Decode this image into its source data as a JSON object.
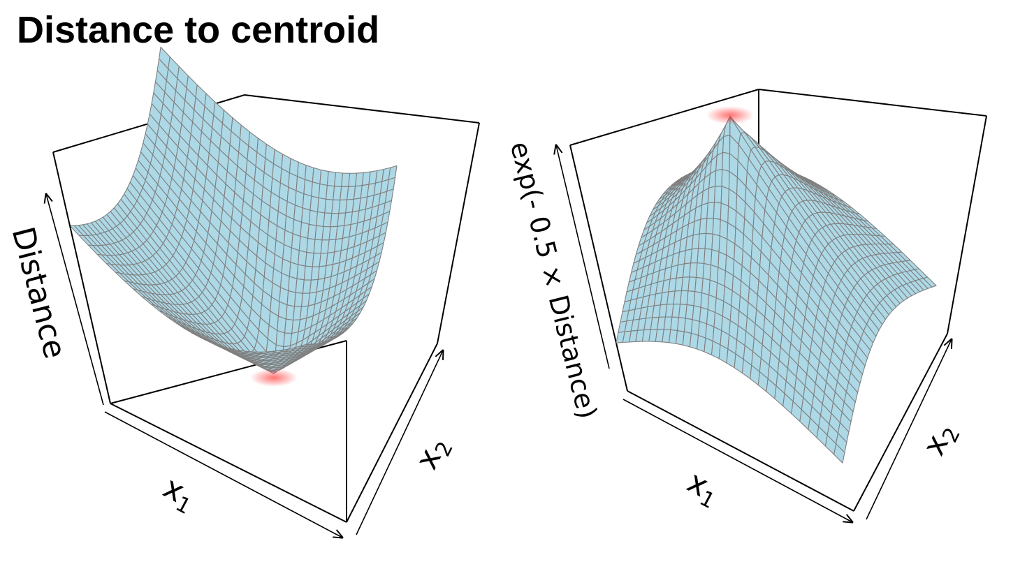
{
  "title": "Distance to centroid",
  "colors": {
    "surface_fill": "#add8e6",
    "mesh_line": "#808080",
    "centroid_marker": "#ff0000",
    "box_line": "#000000"
  },
  "chart_data": [
    {
      "type": "surface",
      "zlabel": "Distance",
      "xlabel": "x",
      "xlabel_subscript": "1",
      "ylabel": "x",
      "ylabel_subscript": "2",
      "function": "distance",
      "x_range": [
        -1,
        1
      ],
      "y_range": [
        -1,
        1
      ],
      "z_range": [
        0,
        2
      ],
      "grid_lines": 30,
      "centroid": {
        "x": 0,
        "y": 0,
        "z": 0,
        "marker": "minimum"
      }
    },
    {
      "type": "surface",
      "zlabel": "exp(- 0.5 × Distance)",
      "xlabel": "x",
      "xlabel_subscript": "1",
      "ylabel": "x",
      "ylabel_subscript": "2",
      "function": "exp_neg_half_distance",
      "x_range": [
        -1,
        1
      ],
      "y_range": [
        -1,
        1
      ],
      "z_range": [
        0.37,
        1
      ],
      "grid_lines": 30,
      "centroid": {
        "x": 0,
        "y": 0,
        "z": 1,
        "marker": "maximum"
      }
    }
  ]
}
